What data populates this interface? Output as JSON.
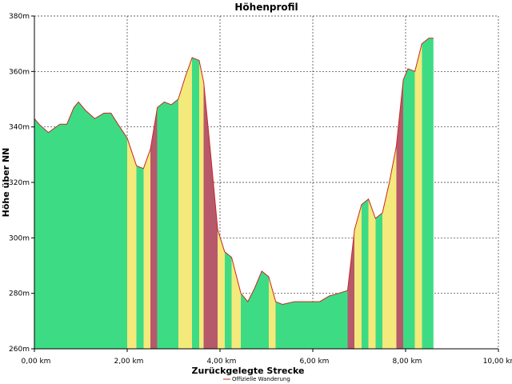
{
  "chart_data": {
    "type": "area",
    "title": "Höhenprofil",
    "xlabel": "Zurückgelegte Strecke",
    "ylabel": "Höhe über NN",
    "xlim": [
      0,
      10
    ],
    "ylim": [
      260,
      380
    ],
    "x_ticks": [
      0,
      2,
      4,
      6,
      8,
      10
    ],
    "x_tick_labels": [
      "0,00 km",
      "2,00 km",
      "4,00 km",
      "6,00 km",
      "8,00 km",
      "10,00 km"
    ],
    "y_ticks": [
      260,
      280,
      300,
      320,
      340,
      360,
      380
    ],
    "y_tick_labels": [
      "260m",
      "280m",
      "300m",
      "320m",
      "340m",
      "360m",
      "380m"
    ],
    "grid": true,
    "legend_position": "bottom",
    "series": [
      {
        "name": "Offizielle Wanderung",
        "color": "#c62828",
        "x": [
          0,
          0.1,
          0.3,
          0.55,
          0.7,
          0.85,
          0.95,
          1.1,
          1.3,
          1.5,
          1.65,
          1.8,
          2.0,
          2.2,
          2.35,
          2.5,
          2.65,
          2.8,
          2.95,
          3.1,
          3.25,
          3.4,
          3.55,
          3.65,
          3.8,
          3.95,
          4.1,
          4.25,
          4.45,
          4.6,
          4.75,
          4.9,
          5.05,
          5.2,
          5.35,
          5.6,
          5.9,
          6.15,
          6.35,
          6.55,
          6.75,
          6.9,
          7.05,
          7.2,
          7.35,
          7.5,
          7.65,
          7.8,
          7.95,
          8.05,
          8.2,
          8.35,
          8.5,
          8.6
        ],
        "y": [
          343,
          341,
          338,
          341,
          341,
          347,
          349,
          346,
          343,
          345,
          345,
          341,
          336,
          326,
          325,
          332,
          347,
          349,
          348,
          350,
          358,
          365,
          364,
          356,
          330,
          303,
          295,
          293,
          280,
          277,
          282,
          288,
          286,
          277,
          276,
          277,
          277,
          277,
          279,
          280,
          281,
          303,
          312,
          314,
          307,
          309,
          320,
          333,
          357,
          361,
          360,
          370,
          372,
          372
        ]
      }
    ],
    "gradient_colors": {
      "flat": "#3ddc84",
      "moderate": "#f4e97b",
      "steep": "#b5596b"
    }
  }
}
